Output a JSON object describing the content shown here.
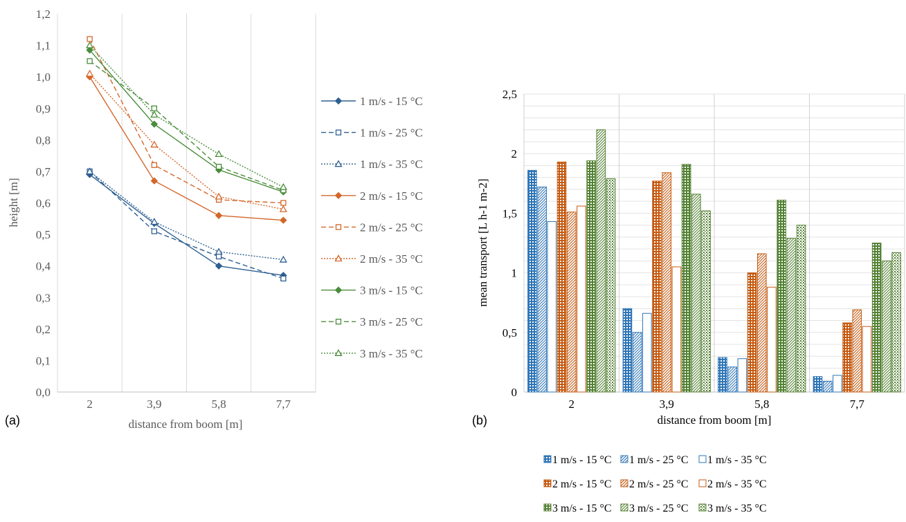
{
  "charts": {
    "a": {
      "panel_label": "(a)",
      "type": "line",
      "xlabel": "distance from boom [m]",
      "ylabel": "height [m]",
      "categories": [
        "2",
        "3,9",
        "5,8",
        "7,7"
      ],
      "ylim": [
        0,
        1.2
      ],
      "yticks": [
        "0,0",
        "0,1",
        "0,2",
        "0,3",
        "0,4",
        "0,5",
        "0,6",
        "0,7",
        "0,8",
        "0,9",
        "1,0",
        "1,1",
        "1,2"
      ],
      "series": [
        {
          "name": "1 m/s - 15 °C",
          "color": "#2e5f91",
          "dash": "solid",
          "marker": "diamond",
          "values": [
            0.69,
            0.535,
            0.4,
            0.37
          ]
        },
        {
          "name": "1 m/s - 25 °C",
          "color": "#2e5f91",
          "dash": "dashed",
          "marker": "square",
          "values": [
            0.7,
            0.51,
            0.43,
            0.36
          ]
        },
        {
          "name": "1 m/s - 35 °C",
          "color": "#2e5f91",
          "dash": "dotted",
          "marker": "triangle",
          "values": [
            0.7,
            0.54,
            0.445,
            0.42
          ]
        },
        {
          "name": "2 m/s - 15 °C",
          "color": "#d4662a",
          "dash": "solid",
          "marker": "diamond",
          "values": [
            1.0,
            0.67,
            0.56,
            0.545
          ]
        },
        {
          "name": "2 m/s - 25 °C",
          "color": "#d4662a",
          "dash": "dashed",
          "marker": "square",
          "values": [
            1.12,
            0.72,
            0.61,
            0.6
          ]
        },
        {
          "name": "2 m/s - 35 °C",
          "color": "#d4662a",
          "dash": "dotted",
          "marker": "triangle",
          "values": [
            1.01,
            0.785,
            0.62,
            0.58
          ]
        },
        {
          "name": "3 m/s - 15 °C",
          "color": "#4a8c3a",
          "dash": "solid",
          "marker": "diamond",
          "values": [
            1.085,
            0.85,
            0.705,
            0.635
          ]
        },
        {
          "name": "3 m/s - 25 °C",
          "color": "#4a8c3a",
          "dash": "dashed",
          "marker": "square",
          "values": [
            1.05,
            0.9,
            0.715,
            0.64
          ]
        },
        {
          "name": "3 m/s - 35 °C",
          "color": "#4a8c3a",
          "dash": "dotted",
          "marker": "triangle",
          "values": [
            1.1,
            0.88,
            0.755,
            0.65
          ]
        }
      ]
    },
    "b": {
      "panel_label": "(b)",
      "type": "bar",
      "xlabel": "distance from boom [m]",
      "ylabel": "mean transport [L h-1 m-2]",
      "categories": [
        "2",
        "3,9",
        "5,8",
        "7,7"
      ],
      "ylim": [
        0,
        2.5
      ],
      "yticks": [
        "0",
        "0,5",
        "1",
        "1,5",
        "2",
        "2,5"
      ],
      "series": [
        {
          "name": "1 m/s - 15 °C",
          "color": "#2e75b6",
          "pattern": "grid",
          "values": [
            1.86,
            0.7,
            0.29,
            0.13
          ]
        },
        {
          "name": "1 m/s - 25 °C",
          "color": "#2e75b6",
          "pattern": "diag",
          "values": [
            1.72,
            0.5,
            0.21,
            0.09
          ]
        },
        {
          "name": "1 m/s - 35 °C",
          "color": "#2e75b6",
          "pattern": "outline",
          "values": [
            1.43,
            0.66,
            0.28,
            0.14
          ]
        },
        {
          "name": "2 m/s - 15 °C",
          "color": "#c55a11",
          "pattern": "grid",
          "values": [
            1.93,
            1.77,
            1.0,
            0.58
          ]
        },
        {
          "name": "2 m/s - 25 °C",
          "color": "#c55a11",
          "pattern": "diag",
          "values": [
            1.51,
            1.84,
            1.16,
            0.69
          ]
        },
        {
          "name": "2 m/s - 35 °C",
          "color": "#c55a11",
          "pattern": "outline",
          "values": [
            1.56,
            1.05,
            0.88,
            0.55
          ]
        },
        {
          "name": "3 m/s - 15 °C",
          "color": "#548235",
          "pattern": "grid",
          "values": [
            1.94,
            1.91,
            1.61,
            1.25
          ]
        },
        {
          "name": "3 m/s - 25 °C",
          "color": "#548235",
          "pattern": "diag",
          "values": [
            2.2,
            1.66,
            1.29,
            1.1
          ]
        },
        {
          "name": "3 m/s - 35 °C",
          "color": "#548235",
          "pattern": "dots",
          "values": [
            1.79,
            1.52,
            1.4,
            1.17
          ]
        }
      ]
    }
  },
  "chart_data": [
    {
      "type": "line",
      "title": "",
      "xlabel": "distance from boom [m]",
      "ylabel": "height [m]",
      "categories": [
        "2",
        "3,9",
        "5,8",
        "7,7"
      ],
      "ylim": [
        0,
        1.2
      ],
      "grid": "vertical",
      "legend": "right",
      "series": [
        {
          "name": "1 m/s - 15 °C",
          "values": [
            0.69,
            0.535,
            0.4,
            0.37
          ]
        },
        {
          "name": "1 m/s - 25 °C",
          "values": [
            0.7,
            0.51,
            0.43,
            0.36
          ]
        },
        {
          "name": "1 m/s - 35 °C",
          "values": [
            0.7,
            0.54,
            0.445,
            0.42
          ]
        },
        {
          "name": "2 m/s - 15 °C",
          "values": [
            1.0,
            0.67,
            0.56,
            0.545
          ]
        },
        {
          "name": "2 m/s - 25 °C",
          "values": [
            1.12,
            0.72,
            0.61,
            0.6
          ]
        },
        {
          "name": "2 m/s - 35 °C",
          "values": [
            1.01,
            0.785,
            0.62,
            0.58
          ]
        },
        {
          "name": "3 m/s - 15 °C",
          "values": [
            1.085,
            0.85,
            0.705,
            0.635
          ]
        },
        {
          "name": "3 m/s - 25 °C",
          "values": [
            1.05,
            0.9,
            0.715,
            0.64
          ]
        },
        {
          "name": "3 m/s - 35 °C",
          "values": [
            1.1,
            0.88,
            0.755,
            0.65
          ]
        }
      ]
    },
    {
      "type": "bar",
      "title": "",
      "xlabel": "distance from boom [m]",
      "ylabel": "mean transport [L h-1 m-2]",
      "categories": [
        "2",
        "3,9",
        "5,8",
        "7,7"
      ],
      "ylim": [
        0,
        2.5
      ],
      "grid": "both",
      "legend": "bottom",
      "series": [
        {
          "name": "1 m/s - 15 °C",
          "values": [
            1.86,
            0.7,
            0.29,
            0.13
          ]
        },
        {
          "name": "1 m/s - 25 °C",
          "values": [
            1.72,
            0.5,
            0.21,
            0.09
          ]
        },
        {
          "name": "1 m/s - 35 °C",
          "values": [
            1.43,
            0.66,
            0.28,
            0.14
          ]
        },
        {
          "name": "2 m/s - 15 °C",
          "values": [
            1.93,
            1.77,
            1.0,
            0.58
          ]
        },
        {
          "name": "2 m/s - 25 °C",
          "values": [
            1.51,
            1.84,
            1.16,
            0.69
          ]
        },
        {
          "name": "2 m/s - 35 °C",
          "values": [
            1.56,
            1.05,
            0.88,
            0.55
          ]
        },
        {
          "name": "3 m/s - 15 °C",
          "values": [
            1.94,
            1.91,
            1.61,
            1.25
          ]
        },
        {
          "name": "3 m/s - 25 °C",
          "values": [
            2.2,
            1.66,
            1.29,
            1.1
          ]
        },
        {
          "name": "3 m/s - 35 °C",
          "values": [
            1.79,
            1.52,
            1.4,
            1.17
          ]
        }
      ]
    }
  ]
}
